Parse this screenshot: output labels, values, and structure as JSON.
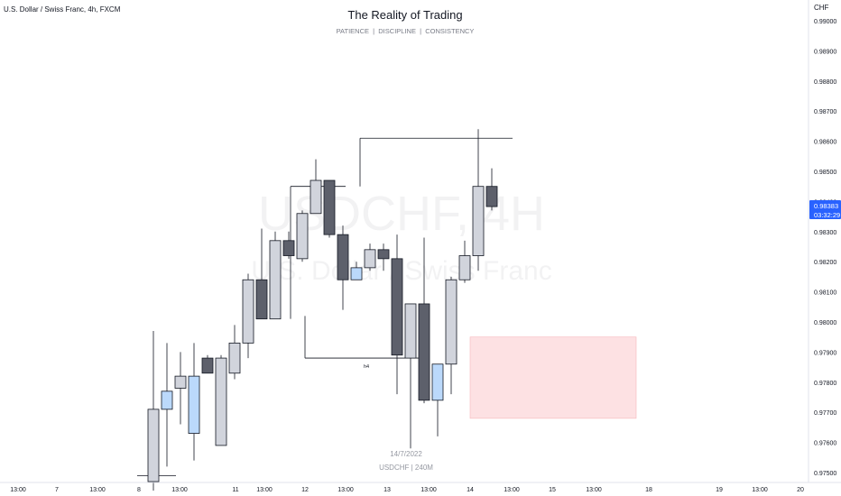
{
  "header": {
    "symbol_label": "U.S. Dollar / Swiss Franc, 4h, FXCM",
    "title": "The Reality of Trading",
    "subtitle": "PATIENCE  |  DISCIPLINE  |  CONSISTENCY",
    "watermark_symbol": "USDCHF, 4H",
    "watermark_name": "U.S. Dollar / Swiss Franc"
  },
  "footer": {
    "date": "14/7/2022",
    "symbol_tf": "USDCHF | 240M"
  },
  "price_axis": {
    "currency": "CHF",
    "current_price": "0.98383",
    "countdown": "03:32:29"
  },
  "colors": {
    "bull_candle": "#d1d4dc",
    "bear_candle": "#5d606b",
    "highlight_candle": "#bbd9fb",
    "zone_fill": "#fde1e3",
    "zone_border": "#f7b6bb",
    "price_tag": "#2962ff"
  },
  "annotations": {
    "h4_label": "h4"
  },
  "chart_data": {
    "type": "candlestick",
    "title": "The Reality of Trading",
    "y_axis": {
      "ticks": [
        "0.99000",
        "0.98900",
        "0.98800",
        "0.98700",
        "0.98600",
        "0.98500",
        "0.98400",
        "0.98300",
        "0.98200",
        "0.98100",
        "0.98000",
        "0.97900",
        "0.97800",
        "0.97700",
        "0.97600",
        "0.97500"
      ],
      "range": [
        0.9745,
        0.9904
      ]
    },
    "x_axis": {
      "labels": [
        "13:00",
        "7",
        "13:00",
        "8",
        "13:00",
        "11",
        "13:00",
        "12",
        "13:00",
        "13",
        "13:00",
        "14",
        "13:00",
        "15",
        "13:00",
        "18",
        "19",
        "13:00",
        "20"
      ]
    },
    "candles": [
      {
        "o": 0.9747,
        "h": 0.9749,
        "l": 0.9745,
        "c": 0.9749,
        "style": "bull"
      },
      {
        "o": 0.9747,
        "h": 0.9797,
        "l": 0.9744,
        "c": 0.9771,
        "style": "bull"
      },
      {
        "o": 0.9771,
        "h": 0.9793,
        "l": 0.9752,
        "c": 0.9777,
        "style": "highlight"
      },
      {
        "o": 0.9778,
        "h": 0.979,
        "l": 0.9766,
        "c": 0.9782,
        "style": "bull"
      },
      {
        "o": 0.9763,
        "h": 0.9793,
        "l": 0.9754,
        "c": 0.9782,
        "style": "highlight"
      },
      {
        "o": 0.9788,
        "h": 0.9789,
        "l": 0.9783,
        "c": 0.9783,
        "style": "bear"
      },
      {
        "o": 0.9759,
        "h": 0.9789,
        "l": 0.9759,
        "c": 0.9788,
        "style": "bull"
      },
      {
        "o": 0.9783,
        "h": 0.9799,
        "l": 0.9781,
        "c": 0.9793,
        "style": "bull"
      },
      {
        "o": 0.9793,
        "h": 0.9816,
        "l": 0.9788,
        "c": 0.9814,
        "style": "bull"
      },
      {
        "o": 0.9814,
        "h": 0.9831,
        "l": 0.9801,
        "c": 0.9801,
        "style": "bear"
      },
      {
        "o": 0.9801,
        "h": 0.983,
        "l": 0.9801,
        "c": 0.9827,
        "style": "bull"
      },
      {
        "o": 0.9827,
        "h": 0.983,
        "l": 0.9821,
        "c": 0.9822,
        "style": "bear"
      },
      {
        "o": 0.9821,
        "h": 0.9837,
        "l": 0.982,
        "c": 0.9836,
        "style": "bull"
      },
      {
        "o": 0.9836,
        "h": 0.9854,
        "l": 0.9836,
        "c": 0.9847,
        "style": "bull"
      },
      {
        "o": 0.9847,
        "h": 0.9847,
        "l": 0.9828,
        "c": 0.9829,
        "style": "bear"
      },
      {
        "o": 0.9829,
        "h": 0.9832,
        "l": 0.9804,
        "c": 0.9814,
        "style": "bear"
      },
      {
        "o": 0.9814,
        "h": 0.982,
        "l": 0.9814,
        "c": 0.9818,
        "style": "highlight"
      },
      {
        "o": 0.9818,
        "h": 0.9826,
        "l": 0.9817,
        "c": 0.9824,
        "style": "bull"
      },
      {
        "o": 0.9824,
        "h": 0.9826,
        "l": 0.9817,
        "c": 0.9821,
        "style": "bear"
      },
      {
        "o": 0.9821,
        "h": 0.9829,
        "l": 0.9776,
        "c": 0.9789,
        "style": "bear"
      },
      {
        "o": 0.9788,
        "h": 0.9806,
        "l": 0.9758,
        "c": 0.9806,
        "style": "bull"
      },
      {
        "o": 0.9806,
        "h": 0.9828,
        "l": 0.9773,
        "c": 0.9774,
        "style": "bear"
      },
      {
        "o": 0.9774,
        "h": 0.9786,
        "l": 0.9762,
        "c": 0.9786,
        "style": "highlight"
      },
      {
        "o": 0.9786,
        "h": 0.9815,
        "l": 0.9776,
        "c": 0.9814,
        "style": "bull"
      },
      {
        "o": 0.9814,
        "h": 0.9827,
        "l": 0.9813,
        "c": 0.9822,
        "style": "bull"
      },
      {
        "o": 0.9822,
        "h": 0.9864,
        "l": 0.9817,
        "c": 0.9845,
        "style": "bull"
      },
      {
        "o": 0.9845,
        "h": 0.9851,
        "l": 0.9837,
        "c": 0.98383,
        "style": "bear"
      }
    ],
    "zone": {
      "top": 0.9795,
      "bottom": 0.9768
    },
    "levels": [
      {
        "price": 0.9845,
        "kind": "high"
      },
      {
        "price": 0.9861,
        "kind": "high"
      },
      {
        "price": 0.9788,
        "kind": "low",
        "label": "h4"
      }
    ]
  }
}
